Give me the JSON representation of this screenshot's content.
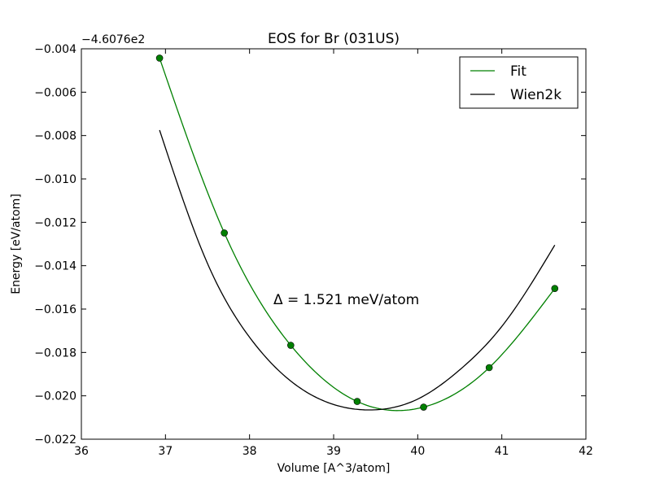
{
  "chart_data": {
    "type": "line",
    "title": "EOS for Br (031US)",
    "xlabel": "Volume [A^3/atom]",
    "ylabel": "Energy [eV/atom]",
    "offset_text": "−4.6076e2",
    "xlim": [
      36,
      42
    ],
    "ylim": [
      -0.022,
      -0.004
    ],
    "xticks": [
      36,
      37,
      38,
      39,
      40,
      41,
      42
    ],
    "xtick_labels": [
      "36",
      "37",
      "38",
      "39",
      "40",
      "41",
      "42"
    ],
    "yticks": [
      -0.022,
      -0.02,
      -0.018,
      -0.016,
      -0.014,
      -0.012,
      -0.01,
      -0.008,
      -0.006,
      -0.004
    ],
    "ytick_labels": [
      "−0.022",
      "−0.020",
      "−0.018",
      "−0.016",
      "−0.014",
      "−0.012",
      "−0.010",
      "−0.008",
      "−0.006",
      "−0.004"
    ],
    "annotation": "Δ = 1.521 meV/atom",
    "legend_placement": "top-right",
    "grid": false,
    "series": [
      {
        "name": "Fit",
        "color": "#008000",
        "kind": "line",
        "x_range": [
          36.93,
          41.63
        ],
        "points": [
          {
            "x": 36.93,
            "y": -0.00443
          },
          {
            "x": 37.7,
            "y": -0.01249
          },
          {
            "x": 38.49,
            "y": -0.01767
          },
          {
            "x": 39.28,
            "y": -0.02026
          },
          {
            "x": 40.07,
            "y": -0.02052
          },
          {
            "x": 40.85,
            "y": -0.0187
          },
          {
            "x": 41.63,
            "y": -0.01505
          }
        ]
      },
      {
        "name": "Wien2k",
        "color": "#000000",
        "kind": "line",
        "x_range": [
          36.93,
          41.63
        ],
        "points": [
          {
            "x": 36.93,
            "y": -0.00775
          },
          {
            "x": 37.5,
            "y": -0.0139
          },
          {
            "x": 38.0,
            "y": -0.0173
          },
          {
            "x": 38.5,
            "y": -0.01935
          },
          {
            "x": 39.0,
            "y": -0.0204
          },
          {
            "x": 39.45,
            "y": -0.02065
          },
          {
            "x": 40.0,
            "y": -0.02015
          },
          {
            "x": 40.5,
            "y": -0.0188
          },
          {
            "x": 41.0,
            "y": -0.0168
          },
          {
            "x": 41.63,
            "y": -0.01305
          }
        ]
      },
      {
        "name": "",
        "color": "#008000",
        "kind": "markers",
        "points": [
          {
            "x": 36.93,
            "y": -0.00443
          },
          {
            "x": 37.7,
            "y": -0.01249
          },
          {
            "x": 38.49,
            "y": -0.01767
          },
          {
            "x": 39.28,
            "y": -0.02026
          },
          {
            "x": 40.07,
            "y": -0.02052
          },
          {
            "x": 40.85,
            "y": -0.0187
          },
          {
            "x": 41.63,
            "y": -0.01505
          }
        ]
      }
    ]
  }
}
